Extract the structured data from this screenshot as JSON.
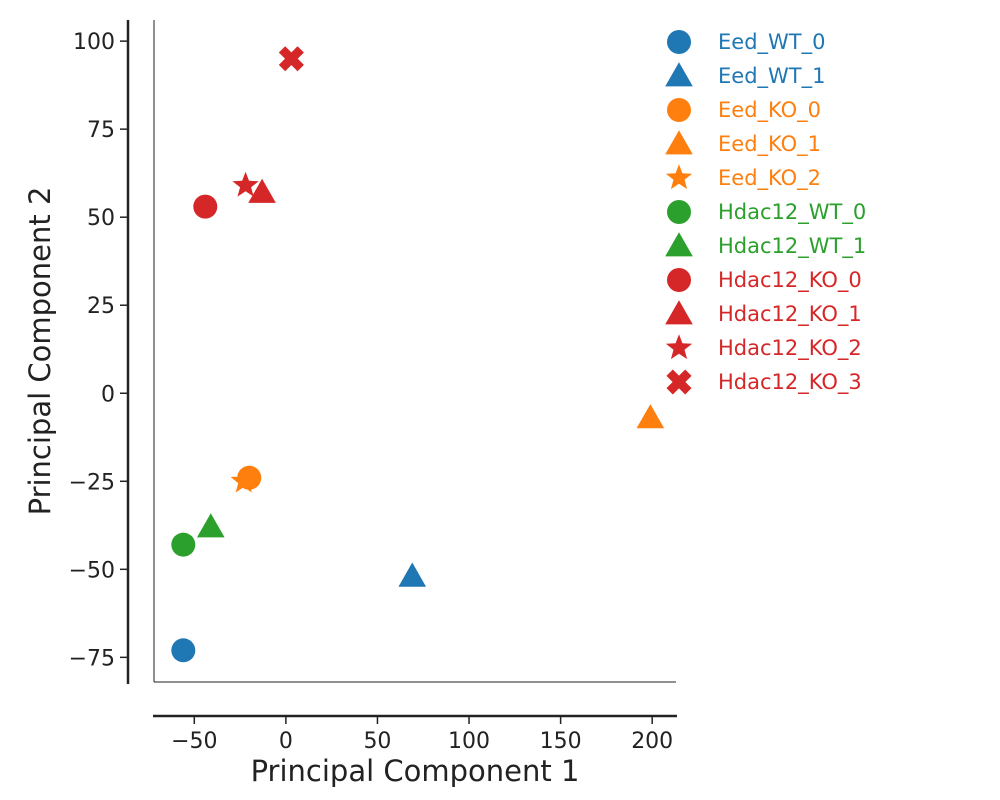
{
  "chart_data": {
    "type": "scatter",
    "xlabel": "Principal Component 1",
    "ylabel": "Principal Component 2",
    "xlim": [
      -72,
      213
    ],
    "ylim": [
      -82,
      106
    ],
    "xticks": [
      -50,
      0,
      50,
      100,
      150,
      200
    ],
    "yticks": [
      -75,
      -50,
      -25,
      0,
      25,
      50,
      75,
      100
    ],
    "xtick_labels": [
      "−50",
      "0",
      "50",
      "100",
      "150",
      "200"
    ],
    "ytick_labels": [
      "−75",
      "−50",
      "−25",
      "0",
      "25",
      "50",
      "75",
      "100"
    ],
    "grid": false,
    "legend_position": "right",
    "series": [
      {
        "name": "Eed_WT_0",
        "color": "#1f77b4",
        "marker": "circle",
        "x": -56,
        "y": -73
      },
      {
        "name": "Eed_WT_1",
        "color": "#1f77b4",
        "marker": "triangle",
        "x": 69,
        "y": -52
      },
      {
        "name": "Eed_KO_0",
        "color": "#ff7f0e",
        "marker": "circle",
        "x": -20,
        "y": -24
      },
      {
        "name": "Eed_KO_1",
        "color": "#ff7f0e",
        "marker": "triangle",
        "x": 199,
        "y": -7
      },
      {
        "name": "Eed_KO_2",
        "color": "#ff7f0e",
        "marker": "star",
        "x": -23,
        "y": -25
      },
      {
        "name": "Hdac12_WT_0",
        "color": "#2ca02c",
        "marker": "circle",
        "x": -56,
        "y": -43
      },
      {
        "name": "Hdac12_WT_1",
        "color": "#2ca02c",
        "marker": "triangle",
        "x": -41,
        "y": -38
      },
      {
        "name": "Hdac12_KO_0",
        "color": "#d62728",
        "marker": "circle",
        "x": -44,
        "y": 53
      },
      {
        "name": "Hdac12_KO_1",
        "color": "#d62728",
        "marker": "triangle",
        "x": -13,
        "y": 57
      },
      {
        "name": "Hdac12_KO_2",
        "color": "#d62728",
        "marker": "star",
        "x": -22,
        "y": 59
      },
      {
        "name": "Hdac12_KO_3",
        "color": "#d62728",
        "marker": "x",
        "x": 3,
        "y": 95
      }
    ]
  }
}
